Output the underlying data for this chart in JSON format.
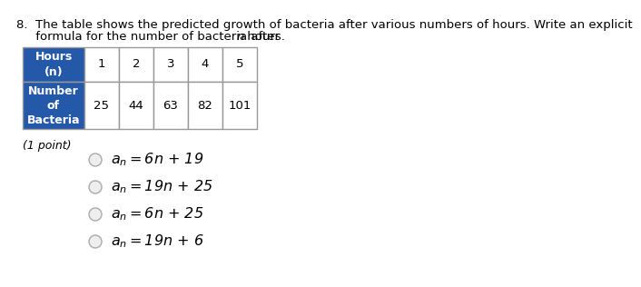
{
  "question_line1": "8.  The table shows the predicted growth of bacteria after various numbers of hours. Write an explicit",
  "question_line2": "     formula for the number of bacteria after ",
  "question_n": "n",
  "question_end": " hours.",
  "hours_values": [
    "1",
    "2",
    "3",
    "4",
    "5"
  ],
  "bacteria_values": [
    "25",
    "44",
    "63",
    "82",
    "101"
  ],
  "point_label": "(1 point)",
  "choice_formulas": [
    "a_n = 6n+19",
    "a_n = 19n+25",
    "a_n = 6n+25",
    "a_n = 19n+6"
  ],
  "header_bg": "#2458A8",
  "header_text_color": "#FFFFFF",
  "cell_bg": "#FFFFFF",
  "border_color": "#999999",
  "fig_bg": "#FFFFFF",
  "font_size_question": 9.5,
  "font_size_table_header": 9.0,
  "font_size_table_data": 9.5,
  "font_size_choices": 11.5,
  "font_size_point": 9.0,
  "radio_color": "#C8C8C8"
}
